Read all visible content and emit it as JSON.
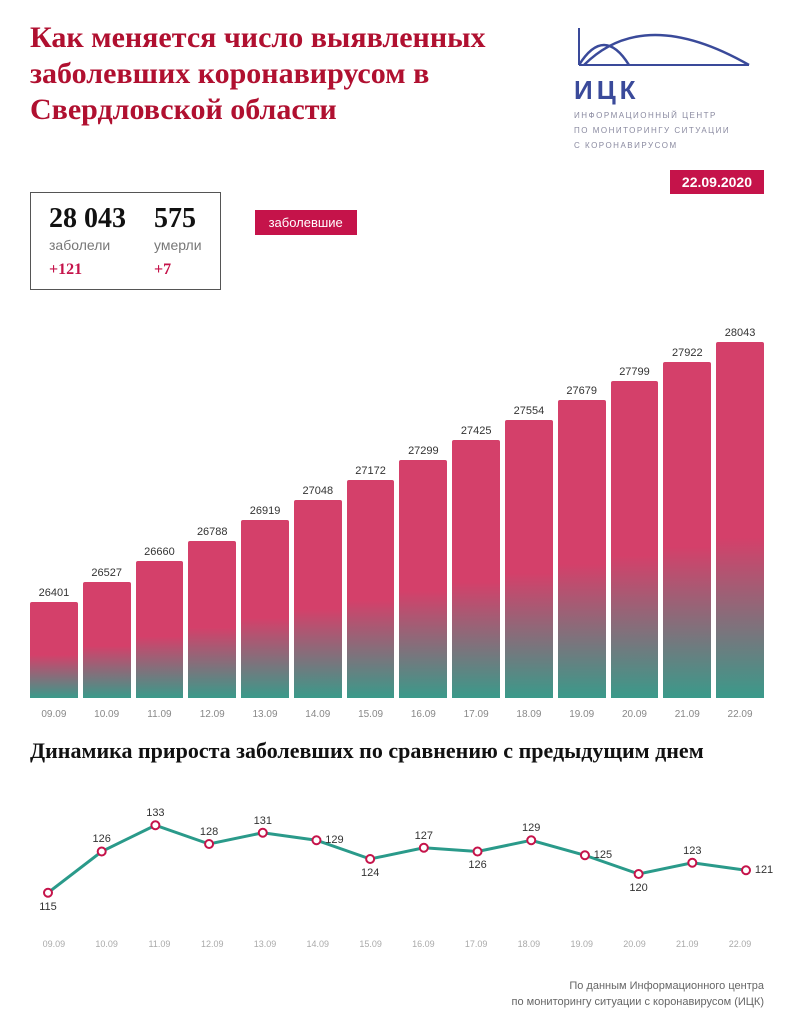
{
  "title": "Как меняется число выявленных заболевших коронавирусом в Свердловской области",
  "logo": {
    "abbr": "ИЦК",
    "sub1": "ИНФОРМАЦИОННЫЙ ЦЕНТР",
    "sub2": "ПО МОНИТОРИНГУ СИТУАЦИИ",
    "sub3": "С КОРОНАВИРУСОМ",
    "stroke": "#3a4a9a"
  },
  "date_badge": "22.09.2020",
  "stats": {
    "total_cases": "28 043",
    "cases_label": "заболели",
    "cases_delta": "+121",
    "total_deaths": "575",
    "deaths_label": "умерли",
    "deaths_delta": "+7"
  },
  "tab_label": "заболевшие",
  "bar_chart": {
    "type": "bar",
    "y_min": 25800,
    "y_max": 28200,
    "bar_gradient_top": "#d4406a",
    "bar_gradient_bottom": "#3a9a8a",
    "label_fontsize": 11,
    "xlabel_fontsize": 10,
    "xlabel_color": "#888",
    "dates": [
      "09.09",
      "10.09",
      "11.09",
      "12.09",
      "13.09",
      "14.09",
      "15.09",
      "16.09",
      "17.09",
      "18.09",
      "19.09",
      "20.09",
      "21.09",
      "22.09"
    ],
    "values": [
      26401,
      26527,
      26660,
      26788,
      26919,
      27048,
      27172,
      27299,
      27425,
      27554,
      27679,
      27799,
      27922,
      28043
    ]
  },
  "subtitle": "Динамика прироста заболевших по сравнению с предыдущим днем",
  "line_chart": {
    "type": "line",
    "y_min": 108,
    "y_max": 140,
    "line_color": "#2a9a8a",
    "line_width": 3,
    "marker_fill": "#ffffff",
    "marker_stroke": "#c5134a",
    "marker_radius": 4,
    "label_fontsize": 11,
    "xlabel_fontsize": 9,
    "xlabel_color": "#aaa",
    "dates": [
      "09.09",
      "10.09",
      "11.09",
      "12.09",
      "13.09",
      "14.09",
      "15.09",
      "16.09",
      "17.09",
      "18.09",
      "19.09",
      "20.09",
      "21.09",
      "22.09"
    ],
    "values": [
      115,
      126,
      133,
      128,
      131,
      129,
      124,
      127,
      126,
      129,
      125,
      120,
      123,
      121
    ],
    "label_positions": [
      "below",
      "above",
      "above",
      "above",
      "above",
      "right",
      "below",
      "above",
      "below",
      "above",
      "right",
      "below",
      "above",
      "right"
    ]
  },
  "footer1": "По данным Информационного центра",
  "footer2": "по мониторингу ситуации с коронавирусом (ИЦК)"
}
